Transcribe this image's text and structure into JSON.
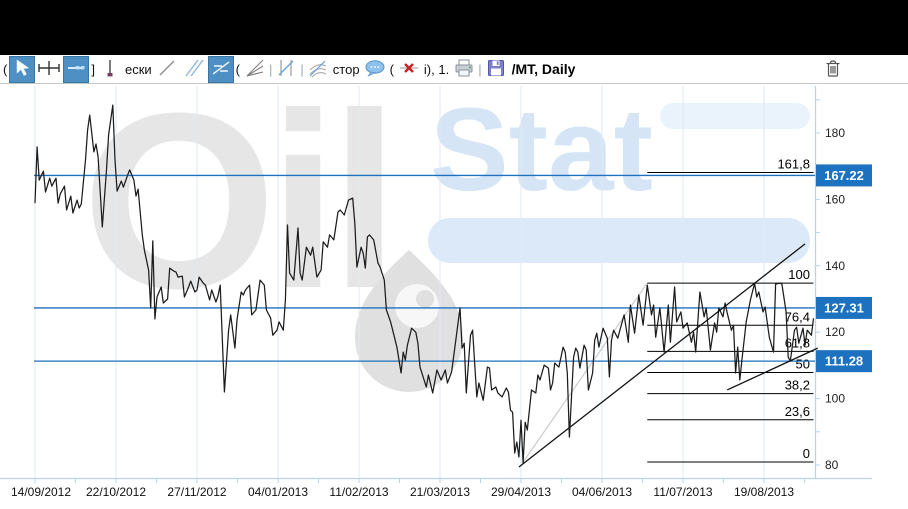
{
  "toolbar": {
    "frag_left": "(",
    "frag_bracket": "]",
    "label_eski": "ески",
    "frag_open_a": "(",
    "sep_a": "|",
    "sep_b": "|",
    "label_stor": "стор",
    "frag_open_b": "(",
    "label_info": "i), 1.",
    "sep_c": "|",
    "symbol": "/MT, Daily"
  },
  "watermark": {
    "brand_gray": "Oil",
    "brand_blue": "Stat"
  },
  "chart_data": {
    "type": "line",
    "title": "/MT, Daily",
    "timeframe": "Daily",
    "x_tick_labels": [
      "14/09/2012",
      "22/10/2012",
      "27/11/2012",
      "04/01/2013",
      "11/02/2013",
      "21/03/2013",
      "29/04/2013",
      "04/06/2013",
      "11/07/2013",
      "19/08/2013"
    ],
    "y_ticks": [
      180,
      160,
      140,
      120,
      100,
      80
    ],
    "ylim": [
      76,
      194
    ],
    "grid": true,
    "grid_color": "#dfeaf6",
    "axis_color": "#b9d3ea",
    "tick_label_color": "#222222",
    "date_label_color": "#111111",
    "price_level_color": "#1d72bf",
    "price_box_color": "#1d72bf",
    "price_levels": [
      {
        "value": 167.22
      },
      {
        "value": 127.31
      },
      {
        "value": 111.28
      }
    ],
    "fibonacci": {
      "base_price": 80.9,
      "top_price": 134.8,
      "start_day": 291,
      "end_day": 370,
      "anchor": [
        [
          232,
          80.9
        ],
        [
          291,
          134.8
        ]
      ],
      "anchor_color": "#cccccc",
      "line_color": "#000000",
      "levels": [
        {
          "label": "0",
          "pct": 0
        },
        {
          "label": "23,6",
          "pct": 23.6
        },
        {
          "label": "38,2",
          "pct": 38.2
        },
        {
          "label": "50",
          "pct": 50
        },
        {
          "label": "61,8",
          "pct": 61.8
        },
        {
          "label": "76,4",
          "pct": 76.4
        },
        {
          "label": "100",
          "pct": 100
        },
        {
          "label": "161,8",
          "pct": 161.8
        }
      ]
    },
    "trendlines": [
      {
        "name": "support-trendline",
        "color": "#111111",
        "points": [
          [
            230,
            79.4
          ],
          [
            366,
            146.6
          ]
        ]
      },
      {
        "name": "minor-trendline",
        "color": "#111111",
        "points": [
          [
            329,
            102.6
          ],
          [
            372,
            115.2
          ]
        ]
      }
    ],
    "series": [
      {
        "name": "Close",
        "color": "#1c1c1c",
        "points": [
          [
            0,
            158.9
          ],
          [
            1,
            175.8
          ],
          [
            2,
            165.8
          ],
          [
            4,
            168.5
          ],
          [
            5,
            162.2
          ],
          [
            7,
            166.4
          ],
          [
            8,
            164
          ],
          [
            10,
            166.4
          ],
          [
            11,
            158.9
          ],
          [
            12,
            161.6
          ],
          [
            14,
            164
          ],
          [
            15,
            156.8
          ],
          [
            17,
            161
          ],
          [
            18,
            155.9
          ],
          [
            20,
            159.8
          ],
          [
            21,
            157.4
          ],
          [
            22,
            158.6
          ],
          [
            24,
            171.9
          ],
          [
            25,
            180.9
          ],
          [
            26,
            185.4
          ],
          [
            28,
            174.3
          ],
          [
            29,
            176.7
          ],
          [
            30,
            172.8
          ],
          [
            32,
            151.7
          ],
          [
            34,
            168.9
          ],
          [
            35,
            179.4
          ],
          [
            37,
            188.4
          ],
          [
            38,
            171.9
          ],
          [
            39,
            162.5
          ],
          [
            41,
            165.5
          ],
          [
            42,
            163.7
          ],
          [
            44,
            167.3
          ],
          [
            45,
            168.9
          ],
          [
            47,
            165.8
          ],
          [
            48,
            161
          ],
          [
            49,
            163.1
          ],
          [
            51,
            149.3
          ],
          [
            52,
            144.7
          ],
          [
            54,
            138.7
          ],
          [
            55,
            127.3
          ],
          [
            56,
            147.5
          ],
          [
            57,
            124
          ],
          [
            58,
            130.6
          ],
          [
            60,
            133.6
          ],
          [
            61,
            128.8
          ],
          [
            63,
            130
          ],
          [
            64,
            139.3
          ],
          [
            66,
            138.4
          ],
          [
            67,
            138.1
          ],
          [
            68,
            136.6
          ],
          [
            70,
            136.9
          ],
          [
            71,
            130.6
          ],
          [
            73,
            133.6
          ],
          [
            74,
            135.4
          ],
          [
            76,
            132.1
          ],
          [
            77,
            132.7
          ],
          [
            78,
            136.6
          ],
          [
            80,
            134.8
          ],
          [
            81,
            134.2
          ],
          [
            83,
            129.7
          ],
          [
            84,
            132.7
          ],
          [
            86,
            129.1
          ],
          [
            87,
            130.9
          ],
          [
            88,
            134.2
          ],
          [
            90,
            102
          ],
          [
            92,
            120.6
          ],
          [
            93,
            125.2
          ],
          [
            95,
            115.2
          ],
          [
            96,
            123.7
          ],
          [
            98,
            132.1
          ],
          [
            99,
            131.2
          ],
          [
            100,
            132.7
          ],
          [
            102,
            134.2
          ],
          [
            103,
            125.2
          ],
          [
            105,
            126.7
          ],
          [
            106,
            131.2
          ],
          [
            107,
            135.7
          ],
          [
            109,
            134.2
          ],
          [
            110,
            126.7
          ],
          [
            112,
            124.3
          ],
          [
            113,
            119.1
          ],
          [
            115,
            120.6
          ],
          [
            116,
            123.1
          ],
          [
            118,
            120.6
          ],
          [
            119,
            129.7
          ],
          [
            120,
            152.3
          ],
          [
            121,
            137.8
          ],
          [
            123,
            135.7
          ],
          [
            125,
            151.4
          ],
          [
            126,
            137.8
          ],
          [
            127,
            135.7
          ],
          [
            129,
            145.6
          ],
          [
            131,
            143.2
          ],
          [
            132,
            145.6
          ],
          [
            134,
            136.6
          ],
          [
            136,
            138.7
          ],
          [
            137,
            147.2
          ],
          [
            139,
            145.6
          ],
          [
            140,
            149.3
          ],
          [
            142,
            147.8
          ],
          [
            144,
            156.2
          ],
          [
            145,
            156.8
          ],
          [
            147,
            155.3
          ],
          [
            149,
            159.8
          ],
          [
            151,
            160.4
          ],
          [
            152,
            152.9
          ],
          [
            153,
            139.6
          ],
          [
            155,
            145.6
          ],
          [
            156,
            143.8
          ],
          [
            157,
            139.3
          ],
          [
            158,
            148.7
          ],
          [
            159,
            149.3
          ],
          [
            161,
            147.8
          ],
          [
            163,
            140.8
          ],
          [
            164,
            139.6
          ],
          [
            166,
            135.7
          ],
          [
            167,
            126.7
          ],
          [
            169,
            123.1
          ],
          [
            170,
            120.6
          ],
          [
            172,
            115.5
          ],
          [
            174,
            107.7
          ],
          [
            175,
            114
          ],
          [
            176,
            111.6
          ],
          [
            177,
            116.1
          ],
          [
            179,
            121.2
          ],
          [
            181,
            120
          ],
          [
            182,
            116.7
          ],
          [
            183,
            109.5
          ],
          [
            186,
            103.5
          ],
          [
            187,
            107.1
          ],
          [
            189,
            101.7
          ],
          [
            191,
            108.6
          ],
          [
            193,
            105.6
          ],
          [
            195,
            108.6
          ],
          [
            196,
            104.7
          ],
          [
            198,
            108
          ],
          [
            200,
            117.6
          ],
          [
            202,
            127.3
          ],
          [
            203,
            115.2
          ],
          [
            204,
            116.7
          ],
          [
            205,
            101.7
          ],
          [
            207,
            119.1
          ],
          [
            208,
            120.6
          ],
          [
            210,
            100.5
          ],
          [
            211,
            104.7
          ],
          [
            213,
            99.5
          ],
          [
            215,
            109.5
          ],
          [
            216,
            109.2
          ],
          [
            217,
            102.6
          ],
          [
            219,
            103.5
          ],
          [
            220,
            101.7
          ],
          [
            222,
            100.5
          ],
          [
            224,
            103.2
          ],
          [
            225,
            102
          ],
          [
            226,
            96.5
          ],
          [
            227,
            95.9
          ],
          [
            228,
            83.6
          ],
          [
            229,
            86.9
          ],
          [
            230,
            82.4
          ],
          [
            231,
            93.5
          ],
          [
            232,
            80.6
          ],
          [
            233,
            92.9
          ],
          [
            234,
            90.5
          ],
          [
            236,
            102.6
          ],
          [
            238,
            101.7
          ],
          [
            239,
            107.1
          ],
          [
            240,
            105.6
          ],
          [
            242,
            110.1
          ],
          [
            244,
            109.2
          ],
          [
            245,
            102.6
          ],
          [
            246,
            104.7
          ],
          [
            247,
            110.7
          ],
          [
            249,
            109.5
          ],
          [
            251,
            115.5
          ],
          [
            252,
            114
          ],
          [
            253,
            107.7
          ],
          [
            254,
            88.4
          ],
          [
            256,
            112.5
          ],
          [
            257,
            115.2
          ],
          [
            258,
            114
          ],
          [
            259,
            109.2
          ],
          [
            261,
            116.1
          ],
          [
            262,
            114.6
          ],
          [
            263,
            102.6
          ],
          [
            265,
            107.7
          ],
          [
            266,
            117.6
          ],
          [
            267,
            119.7
          ],
          [
            268,
            115.5
          ],
          [
            270,
            121.2
          ],
          [
            272,
            118.2
          ],
          [
            273,
            106.5
          ],
          [
            274,
            117.6
          ],
          [
            275,
            120.6
          ],
          [
            277,
            118.2
          ],
          [
            278,
            120.6
          ],
          [
            280,
            125.2
          ],
          [
            282,
            117
          ],
          [
            283,
            128.2
          ],
          [
            285,
            119.7
          ],
          [
            287,
            131.2
          ],
          [
            289,
            122.1
          ],
          [
            291,
            134.2
          ],
          [
            293,
            125.2
          ],
          [
            294,
            128.2
          ],
          [
            295,
            118.5
          ],
          [
            297,
            127.3
          ],
          [
            299,
            114
          ],
          [
            301,
            128.2
          ],
          [
            302,
            117
          ],
          [
            304,
            133.6
          ],
          [
            305,
            123.1
          ],
          [
            307,
            126.1
          ],
          [
            308,
            121.2
          ],
          [
            310,
            122.8
          ],
          [
            312,
            117
          ],
          [
            313,
            120
          ],
          [
            314,
            114
          ],
          [
            316,
            132.1
          ],
          [
            318,
            124.6
          ],
          [
            319,
            127.3
          ],
          [
            321,
            114.6
          ],
          [
            323,
            122.8
          ],
          [
            324,
            120
          ],
          [
            325,
            127.3
          ],
          [
            327,
            124.6
          ],
          [
            328,
            128.8
          ],
          [
            329,
            125.8
          ],
          [
            331,
            120.6
          ],
          [
            332,
            122.1
          ],
          [
            333,
            107.7
          ],
          [
            334,
            115.5
          ],
          [
            335,
            105.6
          ],
          [
            336,
            111.6
          ],
          [
            338,
            123.1
          ],
          [
            340,
            129.7
          ],
          [
            342,
            134.8
          ],
          [
            343,
            130.6
          ],
          [
            344,
            132.1
          ],
          [
            346,
            126.1
          ],
          [
            347,
            127.6
          ],
          [
            349,
            118.5
          ],
          [
            351,
            114
          ],
          [
            352,
            134.5
          ],
          [
            354,
            134.8
          ],
          [
            355,
            134.5
          ],
          [
            357,
            126.1
          ],
          [
            358,
            112.5
          ],
          [
            359,
            111.3
          ],
          [
            361,
            120.6
          ],
          [
            362,
            121.5
          ],
          [
            363,
            116.7
          ],
          [
            365,
            121.2
          ],
          [
            366,
            116.1
          ],
          [
            367,
            120.6
          ],
          [
            369,
            119.1
          ],
          [
            370,
            124.2
          ]
        ]
      }
    ]
  }
}
